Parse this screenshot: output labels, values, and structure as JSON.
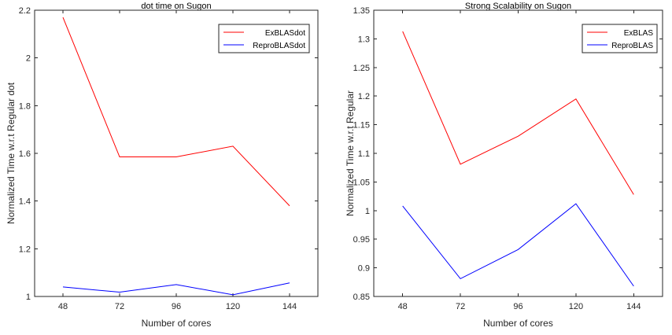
{
  "chart_data": [
    {
      "type": "line",
      "title": "dot time on Sugon",
      "xlabel": "Number of cores",
      "ylabel": "Normalized Time w.r.t Regular dot",
      "x": [
        48,
        72,
        96,
        120,
        144
      ],
      "x_ticks": [
        "48",
        "72",
        "96",
        "120",
        "144"
      ],
      "xlim": [
        36,
        156
      ],
      "ylim": [
        1,
        2.2
      ],
      "y_ticks": [
        "1",
        "1.2",
        "1.4",
        "1.6",
        "1.8",
        "2",
        "2.2"
      ],
      "legend_position": "top-right",
      "series": [
        {
          "name": "ExBLASdot",
          "color": "#ff0000",
          "values": [
            2.17,
            1.585,
            1.585,
            1.63,
            1.38
          ]
        },
        {
          "name": "ReproBLASdot",
          "color": "#0000ff",
          "values": [
            1.04,
            1.018,
            1.05,
            1.007,
            1.057
          ]
        }
      ]
    },
    {
      "type": "line",
      "title": "Strong Scalability on Sugon",
      "xlabel": "Number of cores",
      "ylabel": "Normalized Time w.r.t Regular",
      "x": [
        48,
        72,
        96,
        120,
        144
      ],
      "x_ticks": [
        "48",
        "72",
        "96",
        "120",
        "144"
      ],
      "xlim": [
        36,
        156
      ],
      "ylim": [
        0.85,
        1.35
      ],
      "y_ticks": [
        "0.85",
        "0.9",
        "0.95",
        "1",
        "1.05",
        "1.1",
        "1.15",
        "1.2",
        "1.25",
        "1.3",
        "1.35"
      ],
      "legend_position": "top-right",
      "series": [
        {
          "name": "ExBLAS",
          "color": "#ff0000",
          "values": [
            1.313,
            1.081,
            1.13,
            1.195,
            1.028
          ]
        },
        {
          "name": "ReproBLAS",
          "color": "#0000ff",
          "values": [
            1.008,
            0.881,
            0.932,
            1.012,
            0.868
          ]
        }
      ]
    }
  ]
}
